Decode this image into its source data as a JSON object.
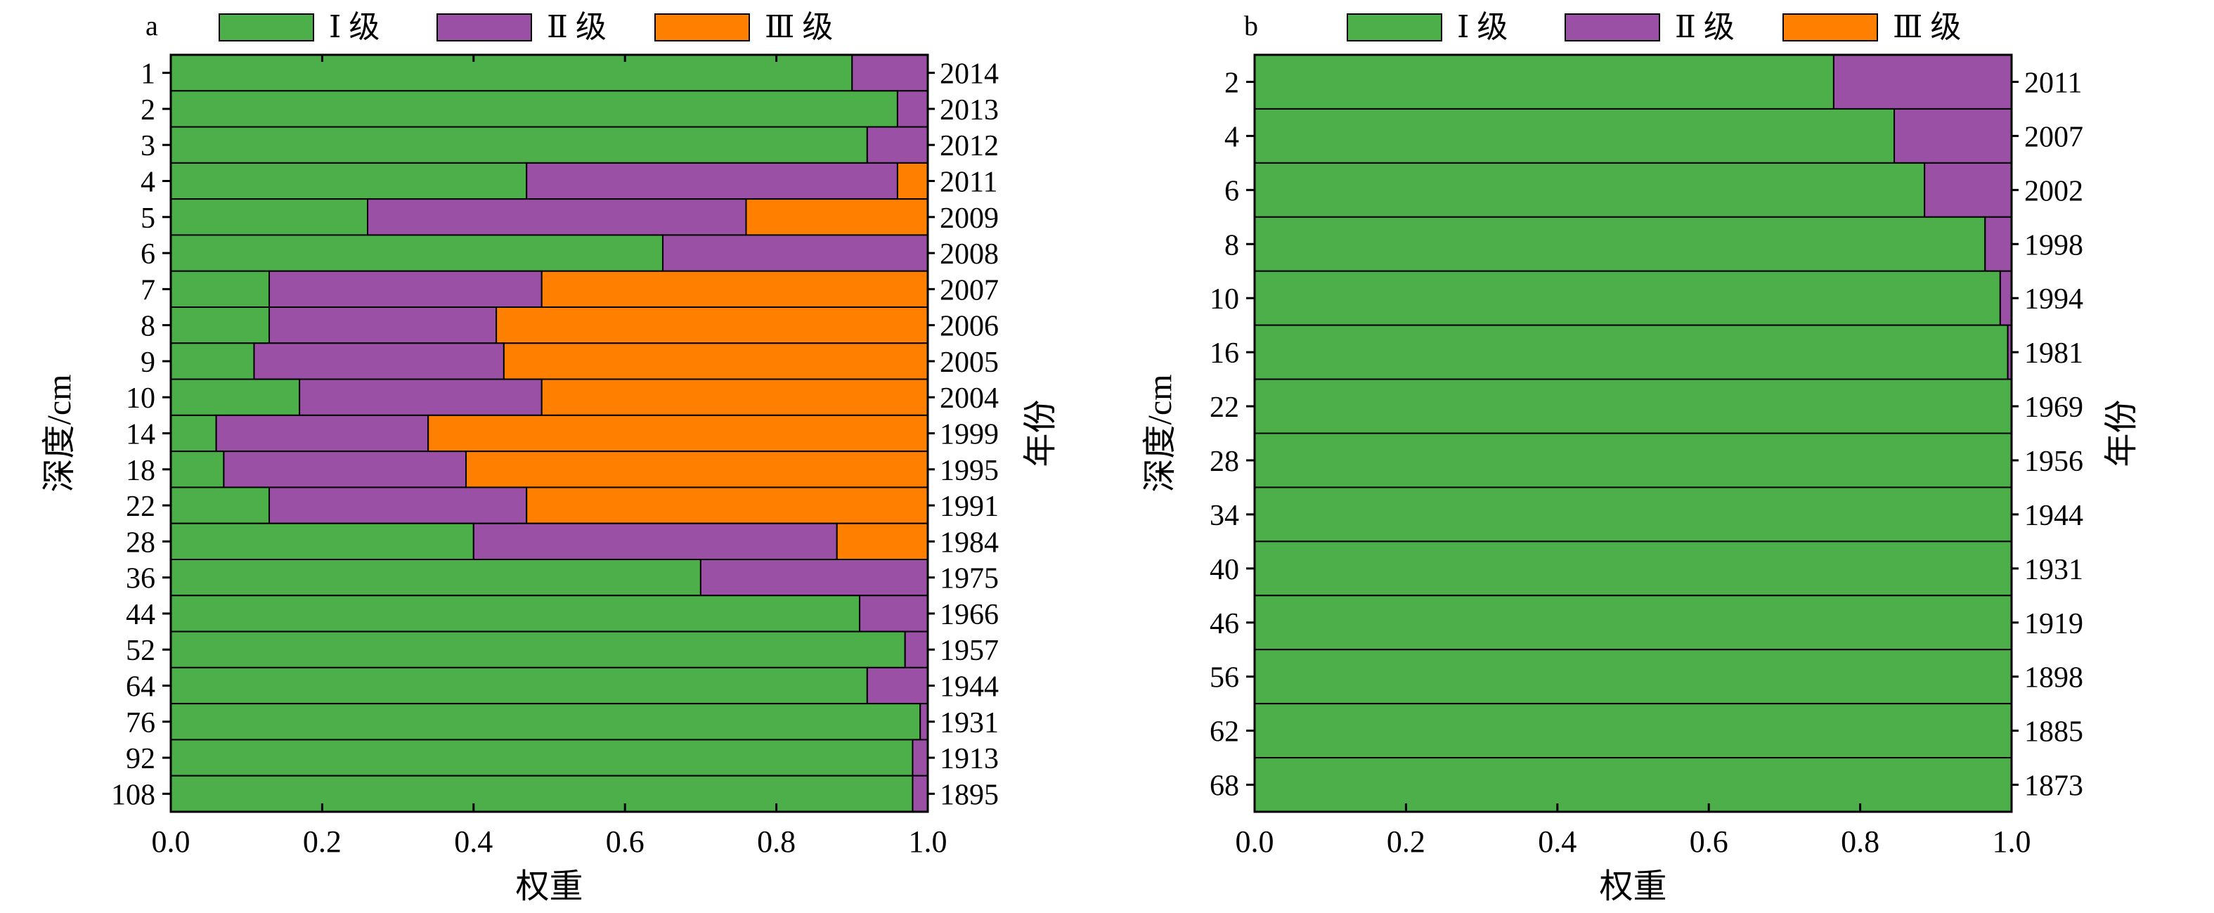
{
  "colors": {
    "grade1": "#4caf4a",
    "grade2": "#9950a5",
    "grade3": "#ff8000"
  },
  "legend": [
    "Ⅰ 级",
    "Ⅱ 级",
    "Ⅲ 级"
  ],
  "chart_data": [
    {
      "panel_label": "a",
      "type": "bar",
      "orientation": "horizontal",
      "stacked": true,
      "ylabel": "深度/cm",
      "y2label": "年份",
      "xlabel": "权重",
      "xlim": [
        0.0,
        1.0
      ],
      "xticks": [
        "0.0",
        "0.2",
        "0.4",
        "0.6",
        "0.8",
        "1.0"
      ],
      "legend_position": "top",
      "categories": [
        "1",
        "2",
        "3",
        "4",
        "5",
        "6",
        "7",
        "8",
        "9",
        "10",
        "14",
        "18",
        "22",
        "28",
        "36",
        "44",
        "52",
        "64",
        "76",
        "92",
        "108"
      ],
      "years": [
        "2014",
        "2013",
        "2012",
        "2011",
        "2009",
        "2008",
        "2007",
        "2006",
        "2005",
        "2004",
        "1999",
        "1995",
        "1991",
        "1984",
        "1975",
        "1966",
        "1957",
        "1944",
        "1931",
        "1913",
        "1895"
      ],
      "series": [
        {
          "name": "Ⅰ 级",
          "values": [
            0.9,
            0.96,
            0.92,
            0.47,
            0.26,
            0.65,
            0.13,
            0.13,
            0.11,
            0.17,
            0.06,
            0.07,
            0.13,
            0.4,
            0.7,
            0.91,
            0.97,
            0.92,
            0.99,
            0.98,
            0.98
          ]
        },
        {
          "name": "Ⅱ 级",
          "values": [
            0.1,
            0.04,
            0.08,
            0.49,
            0.5,
            0.35,
            0.36,
            0.3,
            0.33,
            0.32,
            0.28,
            0.32,
            0.34,
            0.48,
            0.3,
            0.09,
            0.03,
            0.08,
            0.01,
            0.02,
            0.02
          ]
        },
        {
          "name": "Ⅲ 级",
          "values": [
            0.0,
            0.0,
            0.0,
            0.04,
            0.24,
            0.0,
            0.51,
            0.57,
            0.56,
            0.51,
            0.66,
            0.61,
            0.53,
            0.12,
            0.0,
            0.0,
            0.0,
            0.0,
            0.0,
            0.0,
            0.0
          ]
        }
      ]
    },
    {
      "panel_label": "b",
      "type": "bar",
      "orientation": "horizontal",
      "stacked": true,
      "ylabel": "深度/cm",
      "y2label": "年份",
      "xlabel": "权重",
      "xlim": [
        0.0,
        1.0
      ],
      "xticks": [
        "0.0",
        "0.2",
        "0.4",
        "0.6",
        "0.8",
        "1.0"
      ],
      "legend_position": "top",
      "categories": [
        "2",
        "4",
        "6",
        "8",
        "10",
        "16",
        "22",
        "28",
        "34",
        "40",
        "46",
        "56",
        "62",
        "68"
      ],
      "years": [
        "2011",
        "2007",
        "2002",
        "1998",
        "1994",
        "1981",
        "1969",
        "1956",
        "1944",
        "1931",
        "1919",
        "1898",
        "1885",
        "1873"
      ],
      "series": [
        {
          "name": "Ⅰ 级",
          "values": [
            0.765,
            0.845,
            0.885,
            0.965,
            0.985,
            0.995,
            1.0,
            1.0,
            1.0,
            1.0,
            1.0,
            1.0,
            1.0,
            1.0
          ]
        },
        {
          "name": "Ⅱ 级",
          "values": [
            0.235,
            0.155,
            0.115,
            0.035,
            0.015,
            0.005,
            0.0,
            0.0,
            0.0,
            0.0,
            0.0,
            0.0,
            0.0,
            0.0
          ]
        },
        {
          "name": "Ⅲ 级",
          "values": [
            0,
            0,
            0,
            0,
            0,
            0,
            0,
            0,
            0,
            0,
            0,
            0,
            0,
            0
          ]
        }
      ]
    }
  ]
}
